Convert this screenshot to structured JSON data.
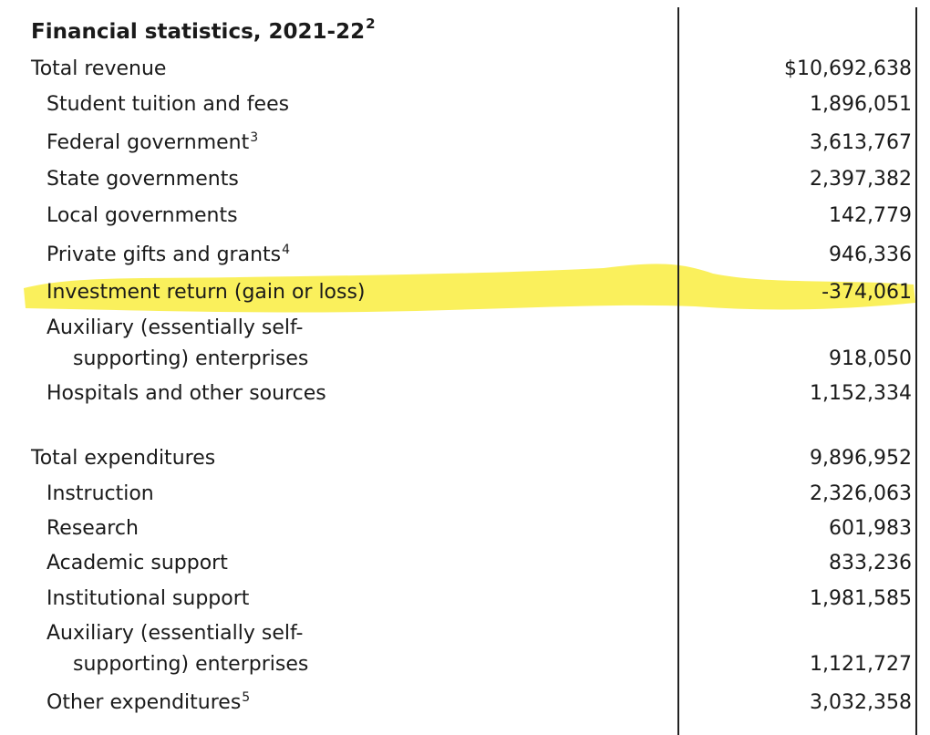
{
  "title": "Financial statistics, 2021-22",
  "title_note": "2",
  "highlight_color": "#f9ee4a",
  "revenue": {
    "total_label": "Total revenue",
    "total_value": "$10,692,638",
    "tuition_label": "Student tuition and fees",
    "tuition_value": "1,896,051",
    "federal_label": "Federal government",
    "federal_note": "3",
    "federal_value": "3,613,767",
    "state_label": "State governments",
    "state_value": "2,397,382",
    "local_label": "Local governments",
    "local_value": "142,779",
    "private_label": "Private gifts and grants",
    "private_note": "4",
    "private_value": "946,336",
    "investment_label": "Investment return (gain or loss)",
    "investment_value": "-374,061",
    "auxiliary_label_line1": "Auxiliary (essentially self-",
    "auxiliary_label_line2": "supporting) enterprises",
    "auxiliary_value": "918,050",
    "hospitals_label": "Hospitals and other sources",
    "hospitals_value": "1,152,334"
  },
  "expenditures": {
    "total_label": "Total expenditures",
    "total_value": "9,896,952",
    "instruction_label": "Instruction",
    "instruction_value": "2,326,063",
    "research_label": "Research",
    "research_value": "601,983",
    "academic_label": "Academic support",
    "academic_value": "833,236",
    "institutional_label": "Institutional support",
    "institutional_value": "1,981,585",
    "auxiliary_label_line1": "Auxiliary (essentially self-",
    "auxiliary_label_line2": "supporting) enterprises",
    "auxiliary_value": "1,121,727",
    "other_label": "Other expenditures",
    "other_note": "5",
    "other_value": "3,032,358"
  }
}
